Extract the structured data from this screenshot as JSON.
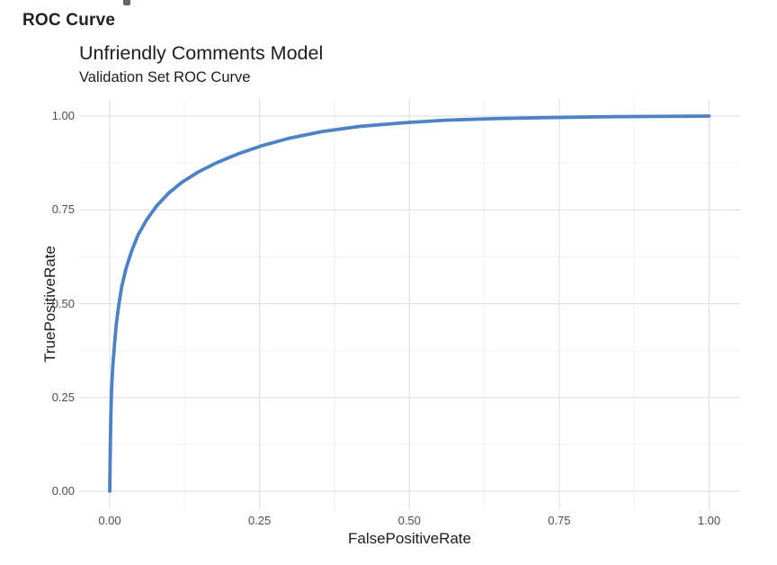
{
  "heading": {
    "text": "ROC Curve"
  },
  "chart": {
    "title": "Unfriendly Comments Model",
    "subtitle": "Validation Set ROC Curve",
    "xlabel": "FalsePositiveRate",
    "ylabel": "TruePositiveRate"
  },
  "colors": {
    "curve_blue": "#4d82c4",
    "grid_major": "#e2e2e2",
    "grid_minor": "#f0f0f0",
    "tick_text": "#4d4d4d",
    "title_text": "#1d1d1d",
    "background": "#ffffff"
  },
  "chart_data": {
    "type": "line",
    "title": "Unfriendly Comments Model",
    "subtitle": "Validation Set ROC Curve",
    "xlabel": "FalsePositiveRate",
    "ylabel": "TruePositiveRate",
    "xlim": [
      0,
      1
    ],
    "ylim": [
      0,
      1
    ],
    "x_ticks": [
      "0.00",
      "0.25",
      "0.50",
      "0.75",
      "1.00"
    ],
    "y_ticks": [
      "0.00",
      "0.25",
      "0.50",
      "0.75",
      "1.00"
    ],
    "grid": "major+minor",
    "legend": "none",
    "series": [
      {
        "name": "ROC",
        "points": [
          [
            0.0,
            0.0
          ],
          [
            0.001,
            0.125
          ],
          [
            0.002,
            0.205
          ],
          [
            0.003,
            0.265
          ],
          [
            0.005,
            0.33
          ],
          [
            0.008,
            0.39
          ],
          [
            0.011,
            0.445
          ],
          [
            0.015,
            0.495
          ],
          [
            0.02,
            0.545
          ],
          [
            0.027,
            0.592
          ],
          [
            0.036,
            0.638
          ],
          [
            0.047,
            0.682
          ],
          [
            0.061,
            0.722
          ],
          [
            0.078,
            0.76
          ],
          [
            0.098,
            0.794
          ],
          [
            0.121,
            0.824
          ],
          [
            0.148,
            0.851
          ],
          [
            0.179,
            0.876
          ],
          [
            0.214,
            0.899
          ],
          [
            0.254,
            0.921
          ],
          [
            0.3,
            0.941
          ],
          [
            0.355,
            0.959
          ],
          [
            0.42,
            0.973
          ],
          [
            0.49,
            0.982
          ],
          [
            0.56,
            0.989
          ],
          [
            0.64,
            0.993
          ],
          [
            0.73,
            0.996
          ],
          [
            0.82,
            0.998
          ],
          [
            0.91,
            0.999
          ],
          [
            1.0,
            1.0
          ]
        ]
      }
    ]
  }
}
